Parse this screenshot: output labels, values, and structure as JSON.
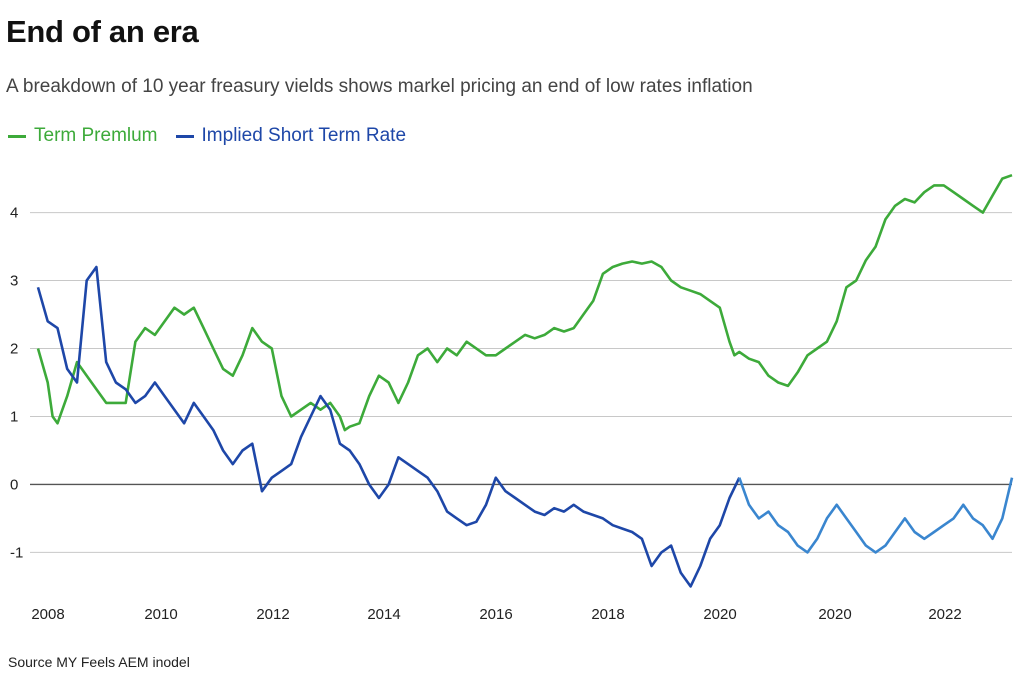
{
  "title": "End of an era",
  "subtitle": "A breakdown of 10 year freasury vields shows markel pricing an end of low rates inflation",
  "source": "Source MY Feels AEM inodel",
  "colors": {
    "term_premium": "#3daa3a",
    "implied_short_rate": "#1e47a8",
    "implied_short_rate_light": "#3a86cf",
    "grid": "#c8c8c8",
    "zero_line": "#555555"
  },
  "chart_data": {
    "type": "line",
    "title": "End of an era",
    "xlabel": "",
    "ylabel": "",
    "ylim": [
      -1.7,
      4.7
    ],
    "grid": true,
    "legend_position": "top-left",
    "x_tick_labels": [
      "2008",
      "2010",
      "2012",
      "2014",
      "2016",
      "2018",
      "2020",
      "2020",
      "2022"
    ],
    "y_ticks": [
      4,
      3,
      2,
      1,
      0,
      -1
    ],
    "y_tick_labels": [
      "4",
      "3",
      "2",
      "1",
      "0",
      "-1"
    ],
    "series": [
      {
        "name": "Term Premlum",
        "x": [
          0,
          1,
          1.5,
          2,
          3,
          4,
          6,
          7,
          9,
          10,
          11,
          12,
          14,
          15,
          16,
          17,
          18,
          19,
          20,
          21,
          22,
          23,
          24,
          25,
          26,
          28,
          29,
          30,
          31,
          31.5,
          32,
          33,
          34,
          35,
          36,
          37,
          38,
          39,
          40,
          41,
          42,
          43,
          44,
          46,
          47,
          48,
          49,
          50,
          51,
          52,
          53,
          54,
          55,
          56,
          57,
          58,
          59,
          60,
          61,
          62,
          63,
          64,
          65,
          66,
          67,
          68,
          69,
          70,
          71,
          71.5,
          72,
          73,
          74,
          75,
          76,
          77,
          78,
          79,
          80,
          81,
          82,
          83,
          84,
          85,
          86,
          87,
          88,
          89,
          90,
          91,
          92,
          93,
          94,
          95,
          96,
          97,
          98,
          99,
          100
        ],
        "values": [
          2.0,
          1.5,
          1.0,
          0.9,
          1.3,
          1.8,
          1.4,
          1.2,
          1.2,
          2.1,
          2.3,
          2.2,
          2.6,
          2.5,
          2.6,
          2.3,
          2.0,
          1.7,
          1.6,
          1.9,
          2.3,
          2.1,
          2.0,
          1.3,
          1.0,
          1.2,
          1.1,
          1.2,
          1.0,
          0.8,
          0.85,
          0.9,
          1.3,
          1.6,
          1.5,
          1.2,
          1.5,
          1.9,
          2.0,
          1.8,
          2.0,
          1.9,
          2.1,
          1.9,
          1.9,
          2.0,
          2.1,
          2.2,
          2.15,
          2.2,
          2.3,
          2.25,
          2.3,
          2.5,
          2.7,
          3.1,
          3.2,
          3.25,
          3.28,
          3.25,
          3.28,
          3.2,
          3.0,
          2.9,
          2.85,
          2.8,
          2.7,
          2.6,
          2.1,
          1.9,
          1.95,
          1.85,
          1.8,
          1.6,
          1.5,
          1.45,
          1.65,
          1.9,
          2.0,
          2.1,
          2.4,
          2.9,
          3.0,
          3.3,
          3.5,
          3.9,
          4.1,
          4.2,
          4.15,
          4.3,
          4.4,
          4.4,
          4.3,
          4.2,
          4.1,
          4.0,
          4.25,
          4.5,
          4.55
        ]
      },
      {
        "name": "Implied Short Term Rate",
        "x": [
          0,
          1,
          2,
          3,
          4,
          5,
          6,
          7,
          8,
          9,
          10,
          11,
          12,
          13,
          14,
          15,
          16,
          17,
          18,
          19,
          20,
          21,
          22,
          23,
          24,
          25,
          26,
          27,
          28,
          29,
          30,
          31,
          32,
          33,
          34,
          35,
          36,
          37,
          38,
          39,
          40,
          41,
          42,
          43,
          44,
          45,
          46,
          47,
          48,
          49,
          50,
          51,
          52,
          53,
          54,
          55,
          56,
          57,
          58,
          59,
          60,
          61,
          62,
          63,
          64,
          65,
          66,
          67,
          68,
          69,
          70,
          71,
          72,
          73,
          74,
          75,
          76,
          77,
          78,
          79,
          80,
          81,
          82,
          83,
          84,
          85,
          86,
          87,
          88,
          89,
          90,
          91,
          92,
          93,
          94,
          95,
          96,
          97,
          98,
          99,
          100
        ],
        "values": [
          2.9,
          2.4,
          2.3,
          1.7,
          1.5,
          3.0,
          3.2,
          1.8,
          1.5,
          1.4,
          1.2,
          1.3,
          1.5,
          1.3,
          1.1,
          0.9,
          1.2,
          1.0,
          0.8,
          0.5,
          0.3,
          0.5,
          0.6,
          -0.1,
          0.1,
          0.2,
          0.3,
          0.7,
          1.0,
          1.3,
          1.1,
          0.6,
          0.5,
          0.3,
          0.0,
          -0.2,
          0.0,
          0.4,
          0.3,
          0.2,
          0.1,
          -0.1,
          -0.4,
          -0.5,
          -0.6,
          -0.55,
          -0.3,
          0.1,
          -0.1,
          -0.2,
          -0.3,
          -0.4,
          -0.45,
          -0.35,
          -0.4,
          -0.3,
          -0.4,
          -0.45,
          -0.5,
          -0.6,
          -0.65,
          -0.7,
          -0.8,
          -1.2,
          -1.0,
          -0.9,
          -1.3,
          -1.5,
          -1.2,
          -0.8,
          -0.6,
          -0.2,
          0.1,
          -0.3,
          -0.5,
          -0.4,
          -0.6,
          -0.7,
          -0.9,
          -1.0,
          -0.8,
          -0.5,
          -0.3,
          -0.5,
          -0.7,
          -0.9,
          -1.0,
          -0.9,
          -0.7,
          -0.5,
          -0.7,
          -0.8,
          -0.7,
          -0.6,
          -0.5,
          -0.3,
          -0.5,
          -0.6,
          -0.8,
          -0.5,
          0.1
        ]
      }
    ]
  },
  "legend": [
    {
      "label": "Term Premlum",
      "color": "#3daa3a"
    },
    {
      "label": "Implied Short Term Rate",
      "color": "#1e47a8"
    }
  ]
}
